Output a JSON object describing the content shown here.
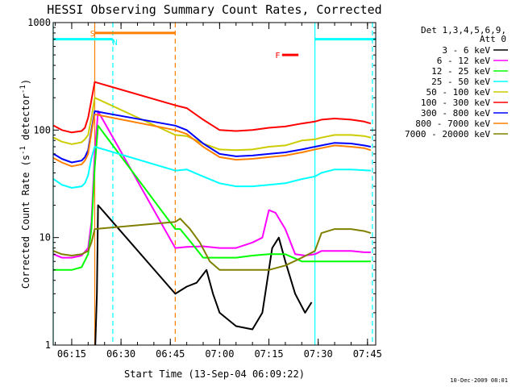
{
  "chart_data": {
    "type": "line",
    "title": "HESSI Observing Summary Count Rates, Corrected",
    "xlabel": "Start Time (13-Sep-04 06:09:22)",
    "ylabel": "Corrected Count Rate (s",
    "ylabel_sup1": "-1",
    "ylabel_mid": " detector",
    "ylabel_sup2": "-1",
    "ylabel_end": ")",
    "yscale": "log",
    "ylim": [
      1,
      1000
    ],
    "xlim": [
      "06:09:22",
      "07:47:30"
    ],
    "xticks": [
      "06:15",
      "06:30",
      "06:45",
      "07:00",
      "07:15",
      "07:30",
      "07:45"
    ],
    "yticks": [
      "1",
      "10",
      "100",
      "1000"
    ],
    "legend_header": [
      "Det 1,3,4,5,6,9,",
      "Att 0"
    ],
    "legend_placement": "right",
    "grid": false,
    "series": [
      {
        "name": "3 - 6 keV",
        "color": "#000000",
        "points": [
          [
            "06:22:10",
            1
          ],
          [
            "06:22:40",
            3
          ],
          [
            "06:23:00",
            20
          ],
          [
            "06:46:30",
            3
          ],
          [
            "06:50",
            3.5
          ],
          [
            "06:53",
            3.8
          ],
          [
            "06:56",
            5
          ],
          [
            "06:58",
            3
          ],
          [
            "07:00",
            2
          ],
          [
            "07:05",
            1.5
          ],
          [
            "07:10",
            1.4
          ],
          [
            "07:13",
            2
          ],
          [
            "07:16",
            8
          ],
          [
            "07:18",
            10
          ],
          [
            "07:20",
            6
          ],
          [
            "07:23",
            3
          ],
          [
            "07:26",
            2
          ],
          [
            "07:28",
            2.5
          ]
        ]
      },
      {
        "name": "6 - 12 keV",
        "color": "#ff00ff",
        "points": [
          [
            "06:09:30",
            7
          ],
          [
            "06:12",
            6.5
          ],
          [
            "06:15",
            6.5
          ],
          [
            "06:18",
            6.8
          ],
          [
            "06:20",
            8
          ],
          [
            "06:21",
            14
          ],
          [
            "06:22",
            60
          ],
          [
            "06:23",
            150
          ],
          [
            "06:46:30",
            8
          ],
          [
            "06:50",
            8.2
          ],
          [
            "06:55",
            8.3
          ],
          [
            "07:00",
            8
          ],
          [
            "07:05",
            8
          ],
          [
            "07:10",
            9
          ],
          [
            "07:13",
            10
          ],
          [
            "07:15",
            18
          ],
          [
            "07:17",
            17
          ],
          [
            "07:20",
            12
          ],
          [
            "07:23",
            7
          ],
          [
            "07:26",
            6.8
          ],
          [
            "07:29",
            7
          ],
          [
            "07:31",
            7.5
          ],
          [
            "07:35",
            7.5
          ],
          [
            "07:40",
            7.5
          ],
          [
            "07:44",
            7.3
          ],
          [
            "07:46",
            7.3
          ]
        ]
      },
      {
        "name": "12 - 25 keV",
        "color": "#00ff00",
        "points": [
          [
            "06:09:30",
            5
          ],
          [
            "06:12",
            5
          ],
          [
            "06:15",
            5
          ],
          [
            "06:18",
            5.3
          ],
          [
            "06:20",
            7
          ],
          [
            "06:21",
            12
          ],
          [
            "06:22",
            45
          ],
          [
            "06:23",
            110
          ],
          [
            "06:46:30",
            12
          ],
          [
            "06:48",
            12
          ],
          [
            "06:52",
            8.5
          ],
          [
            "06:55",
            6.5
          ],
          [
            "07:00",
            6.5
          ],
          [
            "07:05",
            6.5
          ],
          [
            "07:10",
            6.8
          ],
          [
            "07:15",
            7
          ],
          [
            "07:20",
            7
          ],
          [
            "07:25",
            6
          ],
          [
            "07:29",
            6
          ],
          [
            "07:31",
            6
          ],
          [
            "07:35",
            6
          ],
          [
            "07:40",
            6
          ],
          [
            "07:46",
            6
          ]
        ]
      },
      {
        "name": "25 - 50 keV",
        "color": "#00ffff",
        "points": [
          [
            "06:09:30",
            35
          ],
          [
            "06:12",
            31
          ],
          [
            "06:15",
            29
          ],
          [
            "06:18",
            30
          ],
          [
            "06:19",
            32
          ],
          [
            "06:20",
            38
          ],
          [
            "06:21",
            55
          ],
          [
            "06:22",
            70
          ],
          [
            "06:46:30",
            42
          ],
          [
            "06:50",
            43
          ],
          [
            "06:55",
            37
          ],
          [
            "07:00",
            32
          ],
          [
            "07:05",
            30
          ],
          [
            "07:10",
            30
          ],
          [
            "07:15",
            31
          ],
          [
            "07:20",
            32
          ],
          [
            "07:25",
            35
          ],
          [
            "07:29",
            37
          ],
          [
            "07:31",
            40
          ],
          [
            "07:35",
            43
          ],
          [
            "07:40",
            43
          ],
          [
            "07:46",
            42
          ]
        ]
      },
      {
        "name": "50 - 100 keV",
        "color": "#cccc00",
        "points": [
          [
            "06:09:30",
            85
          ],
          [
            "06:12",
            78
          ],
          [
            "06:15",
            74
          ],
          [
            "06:18",
            77
          ],
          [
            "06:19",
            82
          ],
          [
            "06:20",
            90
          ],
          [
            "06:21",
            130
          ],
          [
            "06:22",
            200
          ],
          [
            "06:46:30",
            90
          ],
          [
            "06:50",
            88
          ],
          [
            "06:55",
            75
          ],
          [
            "07:00",
            66
          ],
          [
            "07:05",
            65
          ],
          [
            "07:10",
            66
          ],
          [
            "07:15",
            70
          ],
          [
            "07:20",
            72
          ],
          [
            "07:25",
            80
          ],
          [
            "07:29",
            82
          ],
          [
            "07:31",
            85
          ],
          [
            "07:35",
            90
          ],
          [
            "07:40",
            90
          ],
          [
            "07:44",
            88
          ],
          [
            "07:46",
            85
          ]
        ]
      },
      {
        "name": "100 - 300 keV",
        "color": "#ff0000",
        "points": [
          [
            "06:09:30",
            110
          ],
          [
            "06:12",
            100
          ],
          [
            "06:15",
            95
          ],
          [
            "06:18",
            98
          ],
          [
            "06:19",
            105
          ],
          [
            "06:20",
            130
          ],
          [
            "06:21",
            190
          ],
          [
            "06:22",
            280
          ],
          [
            "06:46:30",
            170
          ],
          [
            "06:50",
            160
          ],
          [
            "06:55",
            125
          ],
          [
            "07:00",
            100
          ],
          [
            "07:05",
            98
          ],
          [
            "07:10",
            100
          ],
          [
            "07:15",
            105
          ],
          [
            "07:20",
            108
          ],
          [
            "07:25",
            115
          ],
          [
            "07:29",
            120
          ],
          [
            "07:31",
            125
          ],
          [
            "07:35",
            128
          ],
          [
            "07:40",
            125
          ],
          [
            "07:44",
            120
          ],
          [
            "07:46",
            115
          ]
        ]
      },
      {
        "name": "300 - 800 keV",
        "color": "#0000ff",
        "points": [
          [
            "06:09:30",
            60
          ],
          [
            "06:12",
            54
          ],
          [
            "06:15",
            50
          ],
          [
            "06:18",
            52
          ],
          [
            "06:19",
            56
          ],
          [
            "06:20",
            65
          ],
          [
            "06:21",
            100
          ],
          [
            "06:22",
            150
          ],
          [
            "06:46:30",
            110
          ],
          [
            "06:50",
            100
          ],
          [
            "06:55",
            75
          ],
          [
            "07:00",
            60
          ],
          [
            "07:05",
            57
          ],
          [
            "07:10",
            58
          ],
          [
            "07:15",
            60
          ],
          [
            "07:20",
            62
          ],
          [
            "07:25",
            66
          ],
          [
            "07:29",
            70
          ],
          [
            "07:31",
            72
          ],
          [
            "07:35",
            76
          ],
          [
            "07:40",
            75
          ],
          [
            "07:44",
            72
          ],
          [
            "07:46",
            70
          ]
        ]
      },
      {
        "name": "800 - 7000 keV",
        "color": "#ff8000",
        "points": [
          [
            "06:09:30",
            55
          ],
          [
            "06:12",
            50
          ],
          [
            "06:15",
            46
          ],
          [
            "06:18",
            48
          ],
          [
            "06:19",
            52
          ],
          [
            "06:20",
            60
          ],
          [
            "06:21",
            95
          ],
          [
            "06:22",
            140
          ],
          [
            "06:46:30",
            100
          ],
          [
            "06:50",
            92
          ],
          [
            "06:55",
            70
          ],
          [
            "07:00",
            56
          ],
          [
            "07:05",
            53
          ],
          [
            "07:10",
            54
          ],
          [
            "07:15",
            56
          ],
          [
            "07:20",
            58
          ],
          [
            "07:25",
            62
          ],
          [
            "07:29",
            66
          ],
          [
            "07:31",
            68
          ],
          [
            "07:35",
            72
          ],
          [
            "07:40",
            70
          ],
          [
            "07:44",
            68
          ],
          [
            "07:46",
            65
          ]
        ]
      },
      {
        "name": "7000 - 20000 keV",
        "color": "#808000",
        "points": [
          [
            "06:09:30",
            7.5
          ],
          [
            "06:12",
            7
          ],
          [
            "06:15",
            6.8
          ],
          [
            "06:18",
            7
          ],
          [
            "06:20",
            7.5
          ],
          [
            "06:21",
            9
          ],
          [
            "06:22",
            12
          ],
          [
            "06:46:30",
            14
          ],
          [
            "06:48",
            15
          ],
          [
            "06:51",
            12
          ],
          [
            "06:54",
            9
          ],
          [
            "06:57",
            6
          ],
          [
            "07:00",
            5
          ],
          [
            "07:05",
            5
          ],
          [
            "07:10",
            5
          ],
          [
            "07:15",
            5
          ],
          [
            "07:20",
            5.5
          ],
          [
            "07:25",
            6.5
          ],
          [
            "07:29",
            7.5
          ],
          [
            "07:31",
            11
          ],
          [
            "07:35",
            12
          ],
          [
            "07:40",
            12
          ],
          [
            "07:44",
            11.5
          ],
          [
            "07:46",
            11
          ]
        ]
      }
    ],
    "annotations": {
      "vlines": [
        {
          "time": "06:09:22",
          "color": "#00ffff",
          "style": "solid"
        },
        {
          "time": "06:22:00",
          "color": "#ff8000",
          "style": "solid"
        },
        {
          "time": "06:27:30",
          "color": "#00ffff",
          "style": "dashed"
        },
        {
          "time": "06:46:30",
          "color": "#ff8000",
          "style": "dashed"
        },
        {
          "time": "07:29:00",
          "color": "#00ffff",
          "style": "solid"
        },
        {
          "time": "07:46:30",
          "color": "#00ffff",
          "style": "dashed"
        }
      ],
      "bars": [
        {
          "start": "06:09:22",
          "end": "06:27:30",
          "color": "#00ffff",
          "level": 700
        },
        {
          "start": "07:29:00",
          "end": "07:47:30",
          "color": "#00ffff",
          "level": 700
        },
        {
          "start": "06:22:00",
          "end": "06:46:30",
          "color": "#ff8000",
          "level": 800
        },
        {
          "start": "07:19:00",
          "end": "07:24:00",
          "color": "#ff0000",
          "level": 500
        }
      ],
      "labels": [
        {
          "text": "S",
          "color": "#ff8000",
          "time": "06:21:20",
          "level": 800
        },
        {
          "text": "N",
          "color": "#00ffff",
          "time": "06:28:10",
          "level": 660
        },
        {
          "text": "F",
          "color": "#ff0000",
          "time": "07:17:40",
          "level": 500
        }
      ]
    }
  },
  "timestamp": "10-Dec-2009 08:01"
}
